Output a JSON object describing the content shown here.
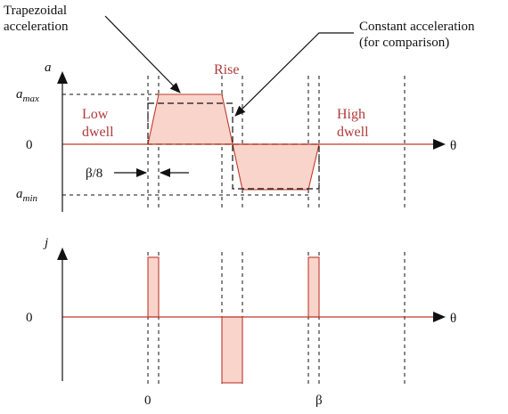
{
  "annotations": {
    "trapezoidal": [
      "Trapezoidal",
      "acceleration"
    ],
    "constant": [
      "Constant acceleration",
      "(for comparison)"
    ]
  },
  "accel_plot": {
    "axis_label": "a",
    "axis_sub_max": "max",
    "axis_sub_min": "min",
    "zero_label": "0",
    "theta_label": "θ",
    "rise_label": "Rise",
    "low_dwell": [
      "Low",
      "dwell"
    ],
    "high_dwell": [
      "High",
      "dwell"
    ],
    "interval_label": "β/8"
  },
  "jerk_plot": {
    "axis_label": "j",
    "zero_label": "0",
    "theta_label": "θ",
    "x_tick_start": "0",
    "x_tick_end": "β"
  },
  "colors": {
    "fill": "#f9d4cb",
    "curve": "#c0392b",
    "text_red": "#b03a3a"
  }
}
